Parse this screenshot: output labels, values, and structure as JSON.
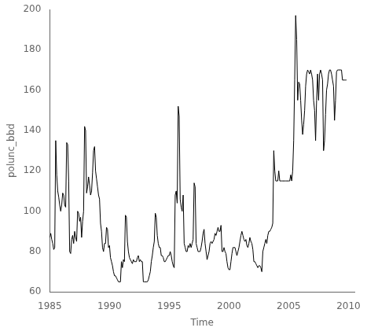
{
  "chart_data": {
    "type": "line",
    "xlabel": "Time",
    "ylabel": "polunc_bbd",
    "x": [
      1985,
      1985.0833333333333,
      1985.1666666666667,
      1985.25,
      1985.3333333333333,
      1985.4166666666667,
      1985.5,
      1985.5833333333333,
      1985.6666666666667,
      1985.75,
      1985.8333333333333,
      1985.9166666666667,
      1986,
      1986.0833333333333,
      1986.1666666666667,
      1986.25,
      1986.3333333333333,
      1986.4166666666667,
      1986.5,
      1986.5833333333333,
      1986.6666666666667,
      1986.75,
      1986.8333333333333,
      1986.9166666666667,
      1987,
      1987.0833333333333,
      1987.1666666666667,
      1987.25,
      1987.3333333333333,
      1987.4166666666667,
      1987.5,
      1987.5833333333333,
      1987.6666666666667,
      1987.75,
      1987.8333333333333,
      1987.9166666666667,
      1988,
      1988.0833333333333,
      1988.1666666666667,
      1988.25,
      1988.3333333333333,
      1988.4166666666667,
      1988.5,
      1988.5833333333333,
      1988.6666666666667,
      1988.75,
      1988.8333333333333,
      1988.9166666666667,
      1989,
      1989.0833333333333,
      1989.1666666666667,
      1989.25,
      1989.3333333333333,
      1989.4166666666667,
      1989.5,
      1989.5833333333333,
      1989.6666666666667,
      1989.75,
      1989.8333333333333,
      1989.9166666666667,
      1990,
      1990.0833333333333,
      1990.1666666666667,
      1990.25,
      1990.3333333333333,
      1990.4166666666667,
      1990.5,
      1990.5833333333333,
      1990.6666666666667,
      1990.75,
      1990.8333333333333,
      1990.9166666666667,
      1991,
      1991.0833333333333,
      1991.1666666666667,
      1991.25,
      1991.3333333333333,
      1991.4166666666667,
      1991.5,
      1991.5833333333333,
      1991.6666666666667,
      1991.75,
      1991.8333333333333,
      1991.9166666666667,
      1992,
      1992.0833333333333,
      1992.1666666666667,
      1992.25,
      1992.3333333333333,
      1992.4166666666667,
      1992.5,
      1992.5833333333333,
      1992.6666666666667,
      1992.75,
      1992.8333333333333,
      1992.9166666666667,
      1993,
      1993.0833333333333,
      1993.1666666666667,
      1993.25,
      1993.3333333333333,
      1993.4166666666667,
      1993.5,
      1993.5833333333333,
      1993.6666666666667,
      1993.75,
      1993.8333333333333,
      1993.9166666666667,
      1994,
      1994.0833333333333,
      1994.1666666666667,
      1994.25,
      1994.3333333333333,
      1994.4166666666667,
      1994.5,
      1994.5833333333333,
      1994.6666666666667,
      1994.75,
      1994.8333333333333,
      1994.9166666666667,
      1995,
      1995.0833333333333,
      1995.1666666666667,
      1995.25,
      1995.3333333333333,
      1995.4166666666667,
      1995.5,
      1995.5833333333333,
      1995.6666666666667,
      1995.75,
      1995.8333333333333,
      1995.9166666666667,
      1996,
      1996.0833333333333,
      1996.1666666666667,
      1996.25,
      1996.3333333333333,
      1996.4166666666667,
      1996.5,
      1996.5833333333333,
      1996.6666666666667,
      1996.75,
      1996.8333333333333,
      1996.9166666666667,
      1997,
      1997.0833333333333,
      1997.1666666666667,
      1997.25,
      1997.3333333333333,
      1997.4166666666667,
      1997.5,
      1997.5833333333333,
      1997.6666666666667,
      1997.75,
      1997.8333333333333,
      1997.9166666666667,
      1998,
      1998.0833333333333,
      1998.1666666666667,
      1998.25,
      1998.3333333333333,
      1998.4166666666667,
      1998.5,
      1998.5833333333333,
      1998.6666666666667,
      1998.75,
      1998.8333333333333,
      1998.9166666666667,
      1999,
      1999.0833333333333,
      1999.1666666666667,
      1999.25,
      1999.3333333333333,
      1999.4166666666667,
      1999.5,
      1999.5833333333333,
      1999.6666666666667,
      1999.75,
      1999.8333333333333,
      1999.9166666666667,
      2000,
      2000.0833333333333,
      2000.1666666666667,
      2000.25,
      2000.3333333333333,
      2000.4166666666667,
      2000.5,
      2000.5833333333333,
      2000.6666666666667,
      2000.75,
      2000.8333333333333,
      2000.9166666666667,
      2001,
      2001.0833333333333,
      2001.1666666666667,
      2001.25,
      2001.3333333333333,
      2001.4166666666667,
      2001.5,
      2001.5833333333333,
      2001.6666666666667,
      2001.75,
      2001.8333333333333,
      2001.9166666666667,
      2002,
      2002.0833333333333,
      2002.1666666666667,
      2002.25,
      2002.3333333333333,
      2002.4166666666667,
      2002.5,
      2002.5833333333333,
      2002.6666666666667,
      2002.75,
      2002.8333333333333,
      2002.9166666666667,
      2003,
      2003.0833333333333,
      2003.1666666666667,
      2003.25,
      2003.3333333333333,
      2003.4166666666667,
      2003.5,
      2003.5833333333333,
      2003.6666666666667,
      2003.75,
      2003.8333333333333,
      2003.9166666666667,
      2004,
      2004.0833333333333,
      2004.1666666666667,
      2004.25,
      2004.3333333333333,
      2004.4166666666667,
      2004.5,
      2004.5833333333333,
      2004.6666666666667,
      2004.75,
      2004.8333333333333,
      2004.9166666666667,
      2005,
      2005.0833333333333,
      2005.1666666666667,
      2005.25,
      2005.3333333333333,
      2005.4166666666667,
      2005.5,
      2005.5833333333333,
      2005.6666666666667,
      2005.75,
      2005.8333333333333,
      2005.9166666666667,
      2006,
      2006.0833333333333,
      2006.1666666666667,
      2006.25,
      2006.3333333333333,
      2006.4166666666667,
      2006.5,
      2006.5833333333333,
      2006.6666666666667,
      2006.75,
      2006.8333333333333,
      2006.9166666666667,
      2007,
      2007.0833333333333,
      2007.1666666666667,
      2007.25,
      2007.3333333333333,
      2007.4166666666667,
      2007.5,
      2007.5833333333333,
      2007.6666666666667,
      2007.75,
      2007.8333333333333,
      2007.9166666666667,
      2008,
      2008.0833333333333,
      2008.1666666666667,
      2008.25,
      2008.3333333333333,
      2008.4166666666667,
      2008.5,
      2008.5833333333333,
      2008.6666666666667,
      2008.75,
      2008.8333333333333,
      2008.9166666666667,
      2009,
      2009.0833333333333,
      2009.1666666666667,
      2009.25,
      2009.3333333333333,
      2009.4166666666667,
      2009.5,
      2009.5833333333333,
      2009.6666666666667,
      2009.75,
      2009.8333333333333
    ],
    "values": [
      87,
      89,
      86,
      84,
      81,
      82,
      135,
      118,
      110,
      107,
      103,
      100,
      103,
      109,
      108,
      103,
      102,
      134,
      133,
      115,
      80,
      79,
      86,
      88,
      84,
      90,
      87,
      85,
      100,
      99,
      95,
      97,
      87,
      95,
      100,
      142,
      140,
      109,
      112,
      117,
      113,
      108,
      110,
      119,
      130,
      132,
      120,
      116,
      112,
      108,
      106,
      94,
      90,
      82,
      80,
      84,
      84,
      92,
      91,
      82,
      83,
      77,
      75,
      73,
      70,
      68,
      68,
      67,
      66,
      65,
      65,
      65,
      75,
      72,
      76,
      75,
      98,
      97,
      85,
      80,
      77,
      76,
      75,
      74,
      76,
      75,
      75,
      75,
      77,
      78,
      75,
      76,
      75,
      75,
      65,
      65,
      65,
      65,
      65,
      66,
      68,
      70,
      75,
      78,
      82,
      85,
      99,
      97,
      88,
      84,
      82,
      82,
      78,
      78,
      77,
      75,
      75,
      76,
      77,
      78,
      78,
      80,
      78,
      75,
      73,
      72,
      108,
      110,
      104,
      152,
      147,
      106,
      102,
      100,
      108,
      84,
      82,
      80,
      80,
      83,
      82,
      84,
      82,
      84,
      86,
      114,
      112,
      84,
      82,
      80,
      80,
      80,
      82,
      85,
      89,
      91,
      84,
      80,
      76,
      78,
      80,
      84,
      85,
      84,
      85,
      86,
      89,
      88,
      90,
      92,
      90,
      90,
      93,
      80,
      80,
      82,
      80,
      79,
      75,
      72,
      71,
      71,
      75,
      79,
      82,
      82,
      82,
      80,
      78,
      80,
      82,
      85,
      88,
      90,
      88,
      86,
      85,
      86,
      83,
      82,
      84,
      87,
      85,
      84,
      81,
      75,
      75,
      74,
      73,
      72,
      73,
      73,
      72,
      70,
      80,
      82,
      84,
      86,
      84,
      88,
      90,
      90,
      91,
      92,
      94,
      130,
      120,
      115,
      115,
      115,
      120,
      115,
      115,
      115,
      115,
      115,
      115,
      115,
      115,
      115,
      115,
      115,
      118,
      115,
      120,
      135,
      165,
      197,
      185,
      155,
      164,
      163,
      155,
      145,
      138,
      143,
      150,
      162,
      168,
      170,
      169,
      168,
      170,
      168,
      165,
      155,
      150,
      135,
      155,
      168,
      155,
      168,
      170,
      168,
      165,
      130,
      135,
      148,
      160,
      163,
      168,
      170,
      170,
      168,
      165,
      162,
      145,
      155,
      169,
      170,
      170,
      170,
      170,
      170,
      165,
      165,
      165,
      165,
      165
    ],
    "color": "#000000",
    "xlim": [
      1985.0,
      2010.5
    ],
    "ylim": [
      60,
      200
    ],
    "xticks": [
      1985,
      1990,
      1995,
      2000,
      2005,
      2010
    ],
    "yticks": [
      60,
      80,
      100,
      120,
      140,
      160,
      180,
      200
    ],
    "grid": false
  }
}
